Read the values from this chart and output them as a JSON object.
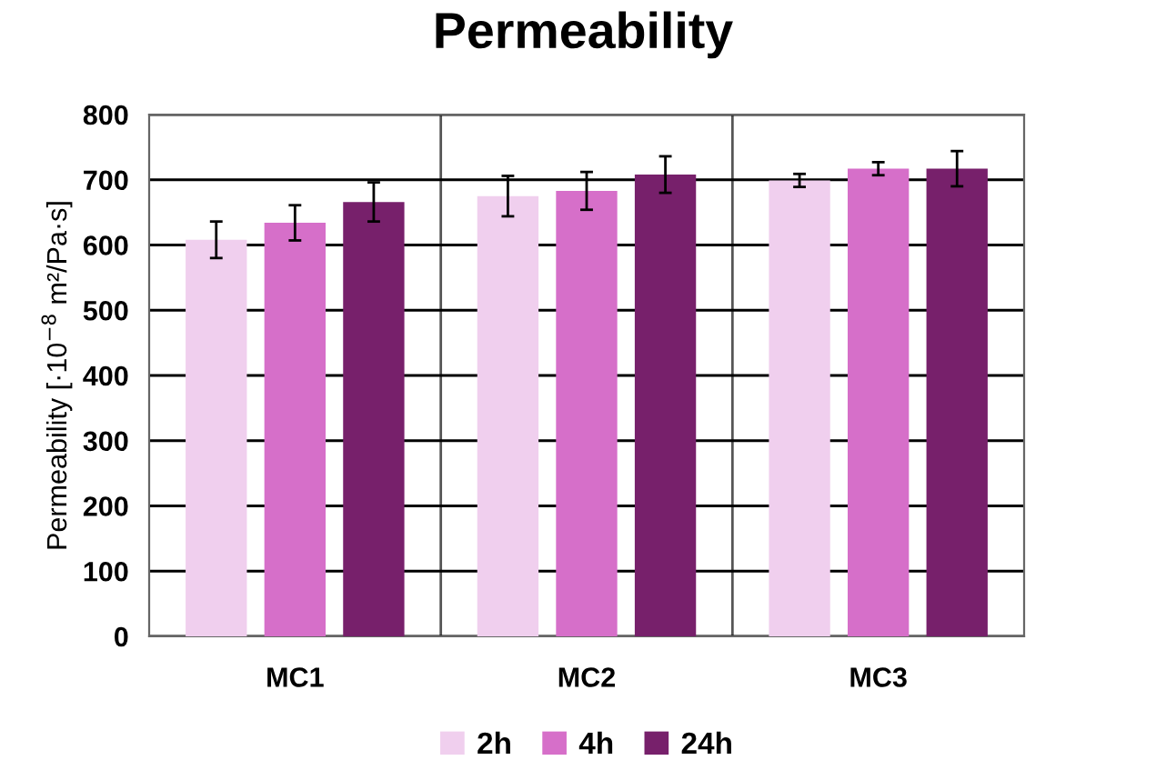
{
  "chart_data": {
    "type": "bar",
    "title": "Permeability",
    "ylabel": "Permeability [·10$^{−8}$ m²/Pa·s]",
    "categories": [
      "MC1",
      "MC2",
      "MC3"
    ],
    "series": [
      {
        "name": "2h",
        "color": "#f0cfee",
        "values": [
          608,
          675,
          699
        ],
        "errors": [
          28,
          31,
          10
        ]
      },
      {
        "name": "4h",
        "color": "#d66fc9",
        "values": [
          634,
          683,
          717
        ],
        "errors": [
          27,
          29,
          10
        ]
      },
      {
        "name": "24h",
        "color": "#77206b",
        "values": [
          666,
          708,
          717
        ],
        "errors": [
          30,
          28,
          27
        ]
      }
    ],
    "ylim": [
      0,
      800
    ],
    "yticks": [
      0,
      100,
      200,
      300,
      400,
      500,
      600,
      700,
      800
    ],
    "grid": true,
    "legend": "bottom"
  }
}
